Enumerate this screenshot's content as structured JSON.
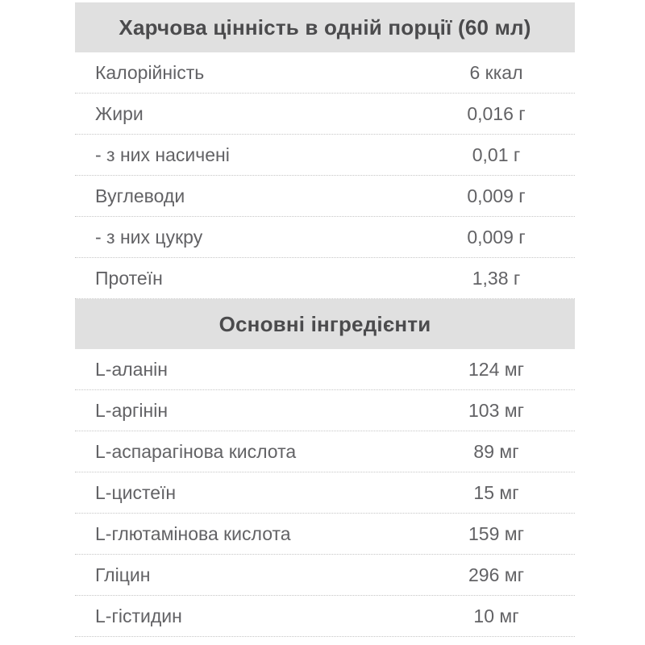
{
  "page": {
    "background_color": "#ffffff"
  },
  "table": {
    "colors": {
      "header_background": "#e0e0e0",
      "header_text": "#4b4b4d",
      "row_text": "#626265",
      "row_divider": "#c6c6c6"
    },
    "sections": [
      {
        "header": "Харчова цінність в одній порції (60 мл)",
        "rows": [
          {
            "label": "Калорійність",
            "value": "6 ккал"
          },
          {
            "label": "Жири",
            "value": "0,016 г"
          },
          {
            "label": "- з них насичені",
            "value": "0,01 г"
          },
          {
            "label": "Вуглеводи",
            "value": "0,009 г"
          },
          {
            "label": "- з них цукру",
            "value": "0,009 г"
          },
          {
            "label": "Протеїн",
            "value": "1,38 г"
          }
        ]
      },
      {
        "header": "Основні інгредієнти",
        "rows": [
          {
            "label": "L-аланін",
            "value": "124 мг"
          },
          {
            "label": "L-аргінін",
            "value": "103 мг"
          },
          {
            "label": "L-аспарагінова кислота",
            "value": "89 мг"
          },
          {
            "label": "L-цистеїн",
            "value": "15 мг"
          },
          {
            "label": "L-глютамінова кислота",
            "value": "159 мг"
          },
          {
            "label": "Гліцин",
            "value": "296 мг"
          },
          {
            "label": "L-гістидин",
            "value": "10 мг"
          }
        ]
      }
    ]
  }
}
